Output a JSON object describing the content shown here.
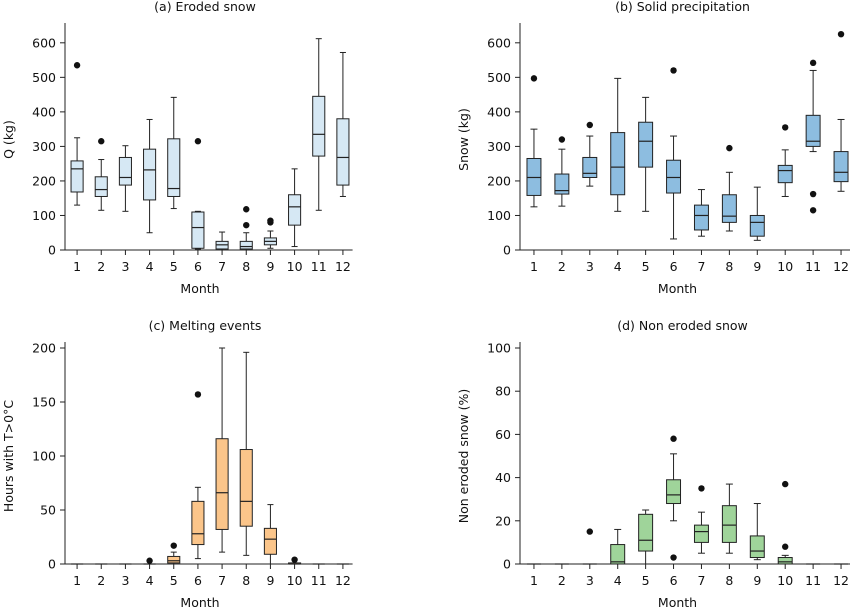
{
  "chart_data": [
    {
      "type": "box",
      "title": "(a) Eroded snow",
      "xlabel": "Month",
      "ylabel": "Q (kg)",
      "ylim": [
        0,
        640
      ],
      "yticks": [
        0,
        100,
        200,
        300,
        400,
        500,
        600
      ],
      "categories": [
        "1",
        "2",
        "3",
        "4",
        "5",
        "6",
        "7",
        "8",
        "9",
        "10",
        "11",
        "12"
      ],
      "fill": "#d6e8f4",
      "boxes": [
        {
          "wlo": 130,
          "q1": 168,
          "med": 235,
          "q3": 258,
          "whi": 325,
          "out": [
            535
          ]
        },
        {
          "wlo": 115,
          "q1": 155,
          "med": 175,
          "q3": 212,
          "whi": 262,
          "out": [
            315
          ]
        },
        {
          "wlo": 112,
          "q1": 188,
          "med": 210,
          "q3": 268,
          "whi": 302,
          "out": []
        },
        {
          "wlo": 50,
          "q1": 145,
          "med": 232,
          "q3": 292,
          "whi": 378,
          "out": []
        },
        {
          "wlo": 120,
          "q1": 155,
          "med": 178,
          "q3": 322,
          "whi": 442,
          "out": []
        },
        {
          "wlo": 3,
          "q1": 5,
          "med": 65,
          "q3": 110,
          "whi": 112,
          "out": [
            315
          ]
        },
        {
          "wlo": 0,
          "q1": 3,
          "med": 15,
          "q3": 25,
          "whi": 52,
          "out": []
        },
        {
          "wlo": 0,
          "q1": 3,
          "med": 10,
          "q3": 25,
          "whi": 50,
          "out": [
            72,
            118
          ]
        },
        {
          "wlo": 5,
          "q1": 15,
          "med": 25,
          "q3": 35,
          "whi": 55,
          "out": [
            80,
            85
          ]
        },
        {
          "wlo": 10,
          "q1": 72,
          "med": 125,
          "q3": 160,
          "whi": 235,
          "out": []
        },
        {
          "wlo": 115,
          "q1": 272,
          "med": 335,
          "q3": 445,
          "whi": 612,
          "out": []
        },
        {
          "wlo": 155,
          "q1": 188,
          "med": 268,
          "q3": 380,
          "whi": 572,
          "out": []
        }
      ]
    },
    {
      "type": "box",
      "title": "(b) Solid precipitation",
      "xlabel": "Month",
      "ylabel": "Snow (kg)",
      "ylim": [
        0,
        640
      ],
      "yticks": [
        0,
        100,
        200,
        300,
        400,
        500,
        600
      ],
      "categories": [
        "1",
        "2",
        "3",
        "4",
        "5",
        "6",
        "7",
        "8",
        "9",
        "10",
        "11",
        "12"
      ],
      "fill": "#8dbde0",
      "boxes": [
        {
          "wlo": 125,
          "q1": 158,
          "med": 210,
          "q3": 265,
          "whi": 350,
          "out": [
            497
          ]
        },
        {
          "wlo": 127,
          "q1": 162,
          "med": 172,
          "q3": 220,
          "whi": 292,
          "out": [
            320
          ]
        },
        {
          "wlo": 185,
          "q1": 210,
          "med": 222,
          "q3": 268,
          "whi": 330,
          "out": [
            362
          ]
        },
        {
          "wlo": 112,
          "q1": 160,
          "med": 240,
          "q3": 340,
          "whi": 497,
          "out": []
        },
        {
          "wlo": 112,
          "q1": 240,
          "med": 315,
          "q3": 370,
          "whi": 442,
          "out": []
        },
        {
          "wlo": 32,
          "q1": 165,
          "med": 210,
          "q3": 260,
          "whi": 330,
          "out": [
            520
          ]
        },
        {
          "wlo": 40,
          "q1": 58,
          "med": 100,
          "q3": 130,
          "whi": 175,
          "out": []
        },
        {
          "wlo": 55,
          "q1": 80,
          "med": 98,
          "q3": 160,
          "whi": 225,
          "out": [
            295
          ]
        },
        {
          "wlo": 28,
          "q1": 40,
          "med": 80,
          "q3": 100,
          "whi": 182,
          "out": []
        },
        {
          "wlo": 155,
          "q1": 195,
          "med": 230,
          "q3": 245,
          "whi": 290,
          "out": [
            355
          ]
        },
        {
          "wlo": 285,
          "q1": 300,
          "med": 315,
          "q3": 390,
          "whi": 520,
          "out": [
            115,
            162,
            542
          ]
        },
        {
          "wlo": 170,
          "q1": 198,
          "med": 225,
          "q3": 285,
          "whi": 378,
          "out": [
            625
          ]
        }
      ]
    },
    {
      "type": "box",
      "title": "(c) Melting events",
      "xlabel": "Month",
      "ylabel": "Hours with T>0°C",
      "ylim": [
        0,
        200
      ],
      "yticks": [
        0,
        50,
        100,
        150,
        200
      ],
      "categories": [
        "1",
        "2",
        "3",
        "4",
        "5",
        "6",
        "7",
        "8",
        "9",
        "10",
        "11",
        "12"
      ],
      "fill": "#fbc58a",
      "boxes": [
        {
          "wlo": 0,
          "q1": 0,
          "med": 0,
          "q3": 0,
          "whi": 0,
          "out": []
        },
        {
          "wlo": 0,
          "q1": 0,
          "med": 0,
          "q3": 0,
          "whi": 0,
          "out": []
        },
        {
          "wlo": 0,
          "q1": 0,
          "med": 0,
          "q3": 0,
          "whi": 0,
          "out": []
        },
        {
          "wlo": 0,
          "q1": 0,
          "med": 0,
          "q3": 0,
          "whi": 0,
          "out": [
            3
          ]
        },
        {
          "wlo": 0,
          "q1": 1,
          "med": 3,
          "q3": 7,
          "whi": 11,
          "out": [
            17
          ]
        },
        {
          "wlo": 5,
          "q1": 18,
          "med": 28,
          "q3": 58,
          "whi": 71,
          "out": [
            157
          ]
        },
        {
          "wlo": 11,
          "q1": 32,
          "med": 66,
          "q3": 116,
          "whi": 200,
          "out": []
        },
        {
          "wlo": 8,
          "q1": 35,
          "med": 58,
          "q3": 106,
          "whi": 196,
          "out": []
        },
        {
          "wlo": 0,
          "q1": 9,
          "med": 23,
          "q3": 33,
          "whi": 55,
          "out": []
        },
        {
          "wlo": 0,
          "q1": 0,
          "med": 0,
          "q3": 1,
          "whi": 1,
          "out": [
            4
          ]
        },
        {
          "wlo": 0,
          "q1": 0,
          "med": 0,
          "q3": 0,
          "whi": 0,
          "out": []
        },
        {
          "wlo": 0,
          "q1": 0,
          "med": 0,
          "q3": 0,
          "whi": 0,
          "out": []
        }
      ]
    },
    {
      "type": "box",
      "title": "(d) Non eroded snow",
      "xlabel": "Month",
      "ylabel": "Non eroded snow (%)",
      "ylim": [
        0,
        100
      ],
      "yticks": [
        0,
        20,
        40,
        60,
        80,
        100
      ],
      "categories": [
        "1",
        "2",
        "3",
        "4",
        "5",
        "6",
        "7",
        "8",
        "9",
        "10",
        "11",
        "12"
      ],
      "fill": "#9fd49a",
      "boxes": [
        {
          "wlo": 0,
          "q1": 0,
          "med": 0,
          "q3": 0,
          "whi": 0,
          "out": []
        },
        {
          "wlo": 0,
          "q1": 0,
          "med": 0,
          "q3": 0,
          "whi": 0,
          "out": []
        },
        {
          "wlo": 0,
          "q1": 0,
          "med": 0,
          "q3": 0,
          "whi": 0,
          "out": [
            15
          ]
        },
        {
          "wlo": 0,
          "q1": 0,
          "med": 1,
          "q3": 9,
          "whi": 16,
          "out": []
        },
        {
          "wlo": 0,
          "q1": 6,
          "med": 11,
          "q3": 23,
          "whi": 25,
          "out": []
        },
        {
          "wlo": 20,
          "q1": 28,
          "med": 32,
          "q3": 39,
          "whi": 51,
          "out": [
            3,
            58
          ]
        },
        {
          "wlo": 5,
          "q1": 10,
          "med": 15,
          "q3": 18,
          "whi": 24,
          "out": [
            35
          ]
        },
        {
          "wlo": 5,
          "q1": 10,
          "med": 18,
          "q3": 27,
          "whi": 37,
          "out": []
        },
        {
          "wlo": 2,
          "q1": 3,
          "med": 6,
          "q3": 13,
          "whi": 28,
          "out": []
        },
        {
          "wlo": 0,
          "q1": 0,
          "med": 1,
          "q3": 3,
          "whi": 4,
          "out": [
            8,
            37
          ]
        },
        {
          "wlo": 0,
          "q1": 0,
          "med": 0,
          "q3": 0,
          "whi": 0,
          "out": []
        },
        {
          "wlo": 0,
          "q1": 0,
          "med": 0,
          "q3": 0,
          "whi": 0,
          "out": []
        }
      ]
    }
  ]
}
